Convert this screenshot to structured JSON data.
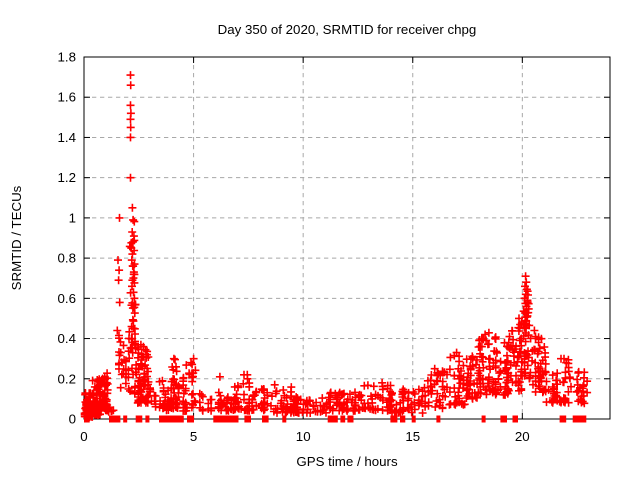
{
  "window": {
    "background": "#ffffff"
  },
  "chart_data": {
    "type": "scatter",
    "title": "Day 350 of 2020, SRMTID for receiver chpg",
    "xlabel": "GPS time / hours",
    "ylabel": "SRMTID / TECUs",
    "xlim": [
      0,
      24
    ],
    "ylim": [
      0,
      1.8
    ],
    "xticks": {
      "values": [
        0,
        5,
        10,
        15,
        20
      ],
      "labels": [
        "0",
        "5",
        "10",
        "15",
        "20"
      ]
    },
    "yticks": {
      "values": [
        0,
        0.2,
        0.4,
        0.6,
        0.8,
        1.0,
        1.2,
        1.4,
        1.6,
        1.8
      ],
      "labels": [
        "0",
        "0.2",
        "0.4",
        "0.6",
        "0.8",
        "1",
        "1.2",
        "1.4",
        "1.6",
        "1.8"
      ]
    },
    "grid": true,
    "grid_style": "dashed",
    "grid_color": "#a8a8a8",
    "border_color": "#000000",
    "legend": false,
    "marker": {
      "shape": "plus",
      "color": "#ff0000",
      "size": 9
    },
    "series_points_outliers": [
      [
        1.62,
        1.0
      ],
      [
        1.55,
        0.79
      ],
      [
        1.6,
        0.74
      ],
      [
        1.58,
        0.69
      ],
      [
        1.63,
        0.58
      ],
      [
        1.52,
        0.44
      ],
      [
        1.68,
        0.33
      ],
      [
        2.12,
        1.71
      ],
      [
        2.13,
        1.66
      ],
      [
        2.12,
        1.56
      ],
      [
        2.14,
        1.52
      ],
      [
        2.12,
        1.49
      ],
      [
        2.13,
        1.45
      ],
      [
        2.12,
        1.4
      ],
      [
        2.12,
        1.2
      ],
      [
        2.21,
        1.05
      ],
      [
        2.24,
        0.99
      ],
      [
        2.2,
        0.93
      ],
      [
        2.23,
        0.88
      ],
      [
        2.16,
        0.85
      ],
      [
        2.21,
        0.82
      ],
      [
        2.18,
        0.79
      ],
      [
        2.24,
        0.76
      ],
      [
        2.27,
        0.72
      ],
      [
        2.21,
        0.69
      ],
      [
        2.19,
        0.66
      ],
      [
        2.26,
        0.63
      ],
      [
        2.3,
        0.6
      ],
      [
        2.35,
        0.57
      ],
      [
        4.1,
        0.3
      ],
      [
        5.0,
        0.3
      ],
      [
        6.2,
        0.21
      ],
      [
        7.3,
        0.22
      ],
      [
        8.7,
        0.17
      ],
      [
        13.6,
        0.18
      ],
      [
        16.0,
        0.25
      ],
      [
        17.0,
        0.33
      ],
      [
        18.15,
        0.4
      ],
      [
        18.3,
        0.42
      ],
      [
        19.85,
        0.5
      ],
      [
        19.9,
        0.47
      ],
      [
        20.15,
        0.71
      ],
      [
        20.18,
        0.68
      ],
      [
        20.12,
        0.66
      ],
      [
        20.21,
        0.645
      ],
      [
        20.16,
        0.62
      ],
      [
        20.1,
        0.6
      ],
      [
        20.23,
        0.59
      ],
      [
        20.14,
        0.575
      ],
      [
        20.19,
        0.56
      ],
      [
        20.55,
        0.44
      ],
      [
        20.6,
        0.41
      ],
      [
        21.9,
        0.3
      ],
      [
        22.0,
        0.28
      ]
    ],
    "point_clusters_xrange_yrange_count_bias": [
      [
        0.02,
        0.4,
        0.01,
        0.13,
        55,
        1.4
      ],
      [
        0.35,
        0.8,
        0.02,
        0.2,
        60,
        1.5
      ],
      [
        0.75,
        1.08,
        0.04,
        0.23,
        45,
        1.3
      ],
      [
        1.1,
        1.42,
        0.03,
        0.1,
        6,
        1.2
      ],
      [
        1.45,
        1.78,
        0.1,
        0.45,
        12,
        1.0
      ],
      [
        1.8,
        2.05,
        0.08,
        0.4,
        14,
        1.2
      ],
      [
        2.05,
        2.35,
        0.12,
        0.58,
        32,
        1.3
      ],
      [
        2.08,
        2.32,
        0.55,
        1.02,
        14,
        0.9
      ],
      [
        2.35,
        2.95,
        0.08,
        0.37,
        75,
        1.5
      ],
      [
        3.0,
        3.35,
        0.05,
        0.16,
        10,
        1.2
      ],
      [
        3.4,
        3.9,
        0.04,
        0.2,
        28,
        1.5
      ],
      [
        3.9,
        4.35,
        0.05,
        0.3,
        36,
        1.6
      ],
      [
        4.5,
        5.1,
        0.04,
        0.28,
        34,
        1.6
      ],
      [
        5.1,
        5.9,
        0.04,
        0.13,
        14,
        1.3
      ],
      [
        6.0,
        7.1,
        0.04,
        0.18,
        45,
        1.7
      ],
      [
        7.1,
        7.7,
        0.04,
        0.22,
        26,
        1.6
      ],
      [
        7.7,
        8.6,
        0.04,
        0.15,
        30,
        1.5
      ],
      [
        8.6,
        9.5,
        0.03,
        0.16,
        35,
        1.6
      ],
      [
        9.5,
        11.1,
        0.03,
        0.11,
        60,
        1.3
      ],
      [
        11.1,
        12.5,
        0.04,
        0.14,
        52,
        1.4
      ],
      [
        12.5,
        14.0,
        0.04,
        0.17,
        55,
        1.5
      ],
      [
        14.0,
        15.5,
        0.03,
        0.15,
        52,
        1.4
      ],
      [
        15.5,
        16.6,
        0.05,
        0.24,
        42,
        1.5
      ],
      [
        16.6,
        17.4,
        0.07,
        0.32,
        38,
        1.5
      ],
      [
        17.4,
        18.0,
        0.1,
        0.36,
        36,
        1.4
      ],
      [
        18.0,
        18.6,
        0.12,
        0.43,
        42,
        1.4
      ],
      [
        18.6,
        19.35,
        0.12,
        0.41,
        50,
        1.4
      ],
      [
        19.35,
        19.95,
        0.14,
        0.46,
        45,
        1.3
      ],
      [
        19.95,
        20.4,
        0.2,
        0.55,
        45,
        1.2
      ],
      [
        20.02,
        20.3,
        0.5,
        0.64,
        10,
        1.0
      ],
      [
        20.4,
        21.05,
        0.13,
        0.42,
        45,
        1.4
      ],
      [
        21.05,
        21.7,
        0.08,
        0.3,
        32,
        1.4
      ],
      [
        21.75,
        22.25,
        0.08,
        0.31,
        22,
        1.3
      ],
      [
        22.45,
        23.0,
        0.07,
        0.24,
        24,
        1.3
      ]
    ],
    "zero_value_segments_hours": [
      [
        0.0,
        0.26
      ],
      [
        1.14,
        1.66
      ],
      [
        1.79,
        1.97
      ],
      [
        2.36,
        2.66
      ],
      [
        2.8,
        2.98
      ],
      [
        3.42,
        4.55
      ],
      [
        4.7,
        5.02
      ],
      [
        5.9,
        7.05
      ],
      [
        7.32,
        7.62
      ],
      [
        8.12,
        8.42
      ],
      [
        9.05,
        9.16
      ],
      [
        11.12,
        11.58
      ],
      [
        11.7,
        11.92
      ],
      [
        12.02,
        12.3
      ],
      [
        13.98,
        14.3
      ],
      [
        14.42,
        14.66
      ],
      [
        14.95,
        15.12
      ],
      [
        16.08,
        16.26
      ],
      [
        18.14,
        18.32
      ],
      [
        19.0,
        19.3
      ],
      [
        19.55,
        19.8
      ],
      [
        21.7,
        22.0
      ],
      [
        22.3,
        22.92
      ]
    ],
    "seed": 42
  }
}
